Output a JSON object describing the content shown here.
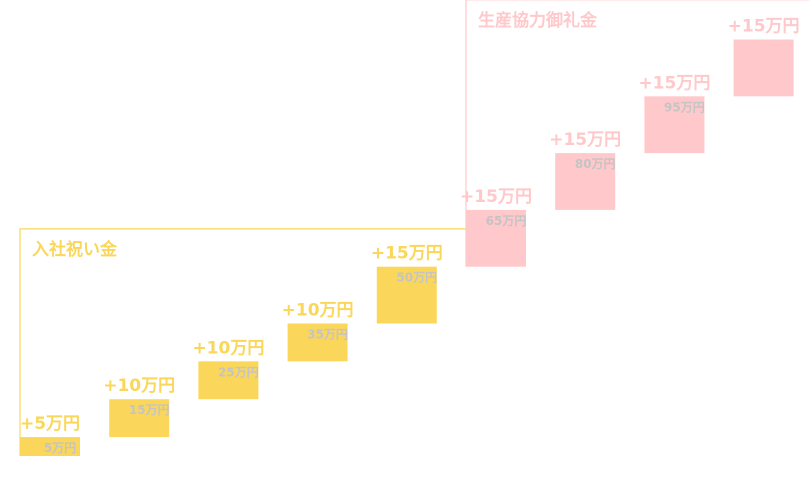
{
  "chart_data": {
    "type": "waterfall",
    "title": "",
    "groups": [
      {
        "name": "入社祝い金",
        "color": "#fad75a",
        "start_index": 0,
        "end_index": 4
      },
      {
        "name": "生産協力御礼金",
        "color": "#ffc8cb",
        "start_index": 5,
        "end_index": 8
      }
    ],
    "steps": [
      {
        "increment": 5,
        "cumulative": 5,
        "delta_label": "+5万円",
        "total_label": "5万円"
      },
      {
        "increment": 10,
        "cumulative": 15,
        "delta_label": "+10万円",
        "total_label": "15万円"
      },
      {
        "increment": 10,
        "cumulative": 25,
        "delta_label": "+10万円",
        "total_label": "25万円"
      },
      {
        "increment": 10,
        "cumulative": 35,
        "delta_label": "+10万円",
        "total_label": "35万円"
      },
      {
        "increment": 15,
        "cumulative": 50,
        "delta_label": "+15万円",
        "total_label": "50万円"
      },
      {
        "increment": 15,
        "cumulative": 65,
        "delta_label": "+15万円",
        "total_label": "65万円"
      },
      {
        "increment": 15,
        "cumulative": 80,
        "delta_label": "+15万円",
        "total_label": "80万円"
      },
      {
        "increment": 15,
        "cumulative": 95,
        "delta_label": "+15万円",
        "total_label": "95万円"
      },
      {
        "increment": 15,
        "cumulative": 110,
        "delta_label": "+15万円",
        "total_label": ""
      }
    ],
    "ylim": [
      0,
      110
    ],
    "xlabel": "",
    "ylabel": ""
  }
}
